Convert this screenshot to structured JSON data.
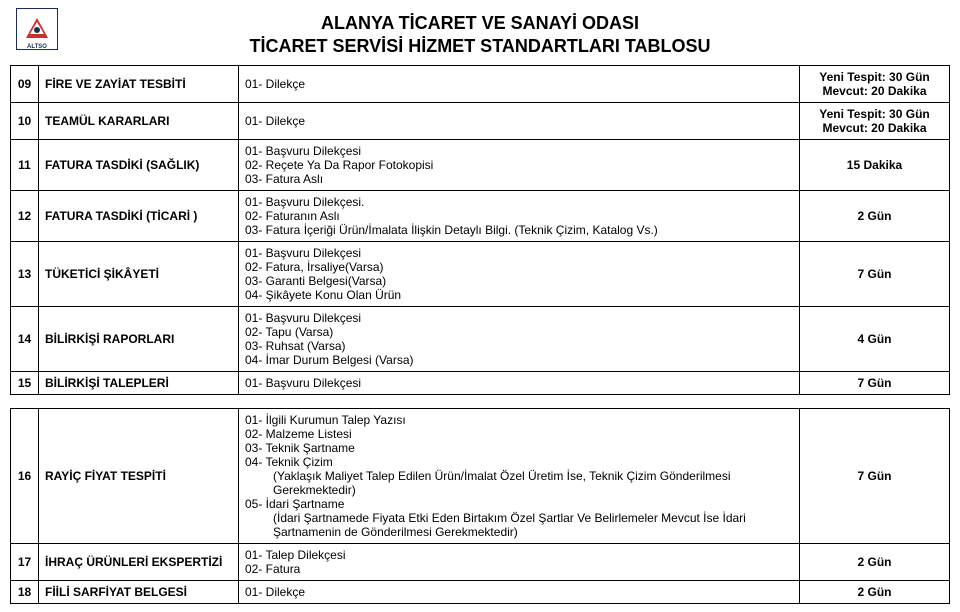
{
  "header": {
    "line1": "ALANYA TİCARET VE SANAYİ ODASI",
    "line2": "TİCARET SERVİSİ HİZMET STANDARTLARI TABLOSU"
  },
  "logo": {
    "text": "ALTSO"
  },
  "rows": [
    {
      "num": "09",
      "title": "FİRE VE ZAYİAT TESBİTİ",
      "docs": [
        "01- Dilekçe"
      ],
      "time": [
        "Yeni Tespit: 30 Gün",
        "Mevcut: 20 Dakika"
      ]
    },
    {
      "num": "10",
      "title": "TEAMÜL KARARLARI",
      "docs": [
        "01- Dilekçe"
      ],
      "time": [
        "Yeni Tespit: 30 Gün",
        "Mevcut: 20 Dakika"
      ]
    },
    {
      "num": "11",
      "title": "FATURA TASDİKİ (SAĞLIK)",
      "docs": [
        "01- Başvuru Dilekçesi",
        "02- Reçete Ya Da Rapor Fotokopisi",
        "03- Fatura Aslı"
      ],
      "time": [
        "15 Dakika"
      ]
    },
    {
      "num": "12",
      "title": "FATURA TASDİKİ (TİCARİ )",
      "docs": [
        "01- Başvuru Dilekçesi.",
        "02- Faturanın Aslı",
        "03- Fatura İçeriği Ürün/İmalata İlişkin Detaylı Bilgi. (Teknik Çizim, Katalog Vs.)"
      ],
      "time": [
        "2 Gün"
      ]
    },
    {
      "num": "13",
      "title": "TÜKETİCİ ŞİKÂYETİ",
      "docs": [
        "01- Başvuru Dilekçesi",
        "02- Fatura, İrsaliye(Varsa)",
        "03- Garanti Belgesi(Varsa)",
        "04- Şikâyete Konu Olan Ürün"
      ],
      "time": [
        "7 Gün"
      ]
    },
    {
      "num": "14",
      "title": "BİLİRKİŞİ RAPORLARI",
      "docs": [
        "01- Başvuru Dilekçesi",
        "02- Tapu (Varsa)",
        "03- Ruhsat (Varsa)",
        "04- İmar Durum Belgesi (Varsa)"
      ],
      "time": [
        "4 Gün"
      ]
    },
    {
      "num": "15",
      "title": "BİLİRKİŞİ TALEPLERİ",
      "docs": [
        "01- Başvuru Dilekçesi"
      ],
      "time": [
        "7 Gün"
      ]
    },
    {
      "num": "16",
      "title": "RAYİÇ FİYAT TESPİTİ",
      "docs": [
        "01- İlgili Kurumun Talep Yazısı",
        "02- Malzeme Listesi",
        "03- Teknik Şartname",
        "04- Teknik Çizim",
        {
          "indent": true,
          "text": "(Yaklaşık Maliyet Talep Edilen Ürün/İmalat Özel Üretim İse, Teknik Çizim Gönderilmesi Gerekmektedir)"
        },
        "05- İdari Şartname",
        {
          "indent": true,
          "text": "(İdari Şartnamede Fiyata Etki Eden Birtakım Özel Şartlar Ve Belirlemeler Mevcut İse İdari Şartnamenin de Gönderilmesi Gerekmektedir)"
        }
      ],
      "time": [
        "7 Gün"
      ]
    },
    {
      "num": "17",
      "title": "İHRAÇ ÜRÜNLERİ EKSPERTİZİ",
      "docs": [
        "01- Talep Dilekçesi",
        "02- Fatura"
      ],
      "time": [
        "2 Gün"
      ]
    },
    {
      "num": "18",
      "title": "FİİLİ SARFİYAT BELGESİ",
      "docs": [
        "01- Dilekçe"
      ],
      "time": [
        "2 Gün"
      ]
    }
  ]
}
